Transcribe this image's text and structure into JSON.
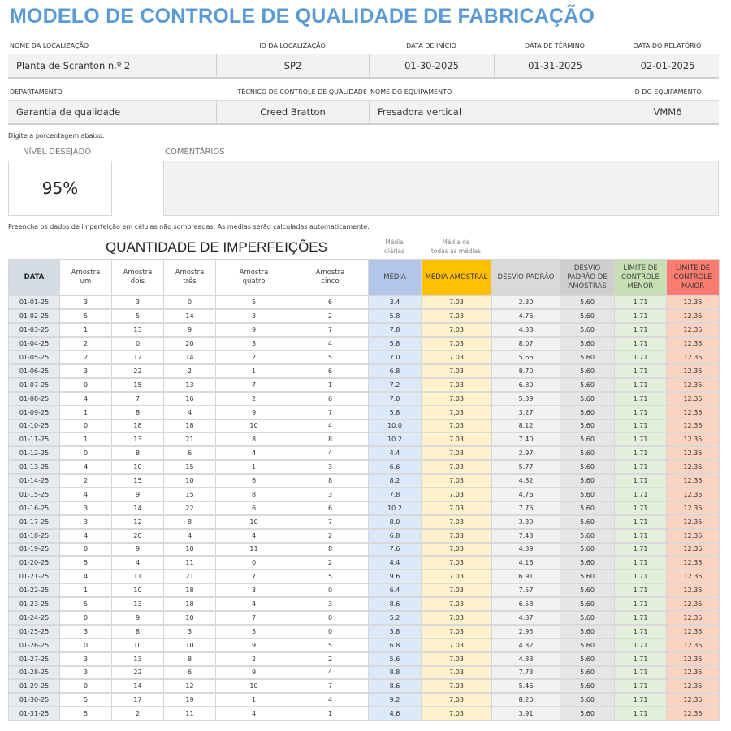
{
  "title": "MODELO DE CONTROLE DE QUALIDADE DE FABRICAÇÃO",
  "header_row1": {
    "location_name": {
      "label": "NOME DA LOCALIZAÇÃO",
      "value": "Planta de Scranton n.º 2"
    },
    "location_id": {
      "label": "ID DA LOCALIZAÇÃO",
      "value": "SP2"
    },
    "start_date": {
      "label": "DATA DE INÍCIO",
      "value": "01-30-2025"
    },
    "end_date": {
      "label": "DATA DE TÉRMINO",
      "value": "01-31-2025"
    },
    "report_date": {
      "label": "DATA DO RELATÓRIO",
      "value": "02-01-2025"
    }
  },
  "header_row2": {
    "department": {
      "label": "DEPARTAMENTO",
      "value": "Garantia de qualidade"
    },
    "technician": {
      "label": "TÉCNICO DE CONTROLE DE QUALIDADE",
      "value": "Creed Bratton"
    },
    "equipment_name": {
      "label": "NOME DO EQUIPAMENTO",
      "value": "Fresadora vertical"
    },
    "equipment_id": {
      "label": "ID DO EQUIPAMENTO",
      "value": "VMM6"
    }
  },
  "percent_note": "Digite a porcentagem abaixo.",
  "target_level": {
    "label": "NÍVEL DESEJADO",
    "value": "95%"
  },
  "comments": {
    "label": "COMENTÁRIOS",
    "value": ""
  },
  "fill_note": "Preencha os dados de imperfeição em células não sombreadas. As médias serão calculadas automaticamente.",
  "table": {
    "title": "QUANTIDADE DE IMPERFEIÇÕES",
    "hint_daily": [
      "Média",
      "diárias"
    ],
    "hint_all": [
      "Média de",
      "todas as médias"
    ],
    "headers": {
      "date": "DATA",
      "s1": [
        "Amostra",
        "um"
      ],
      "s2": [
        "Amostra",
        "dois"
      ],
      "s3": [
        "Amostra",
        "três"
      ],
      "s4": [
        "Amostra",
        "quatro"
      ],
      "s5": [
        "Amostra",
        "cinco"
      ],
      "mean": "MÉDIA",
      "sample_mean": "MÉDIA AMOSTRAL",
      "std_dev": "DESVIO PADRÃO",
      "sample_std": [
        "DESVIO",
        "PADRÃO DE",
        "AMOSTRAS"
      ],
      "lcl": [
        "LIMITE DE",
        "CONTROLE",
        "MENOR"
      ],
      "ucl": [
        "LIMITE DE",
        "CONTROLE",
        "MAIOR"
      ]
    },
    "colors": {
      "mean": "#b4c6e7",
      "sample_mean": "#ffc000",
      "std_dev": "#d9d9d9",
      "sample_std": "#d0cece",
      "lcl": "#c6e0b4",
      "ucl": "#ff7c70",
      "date": "#d6dce4"
    },
    "rows": [
      [
        "01-01-25",
        "3",
        "3",
        "0",
        "5",
        "6",
        "3.4",
        "7.03",
        "2.30",
        "5.60",
        "1.71",
        "12.35"
      ],
      [
        "01-02-25",
        "5",
        "5",
        "14",
        "3",
        "2",
        "5.8",
        "7.03",
        "4.76",
        "5.60",
        "1.71",
        "12.35"
      ],
      [
        "01-03-25",
        "1",
        "13",
        "9",
        "9",
        "7",
        "7.8",
        "7.03",
        "4.38",
        "5.60",
        "1.71",
        "12.35"
      ],
      [
        "01-04-25",
        "2",
        "0",
        "20",
        "3",
        "4",
        "5.8",
        "7.03",
        "8.07",
        "5.60",
        "1.71",
        "12.35"
      ],
      [
        "01-05-25",
        "2",
        "12",
        "14",
        "2",
        "5",
        "7.0",
        "7.03",
        "5.66",
        "5.60",
        "1.71",
        "12.35"
      ],
      [
        "01-06-25",
        "3",
        "22",
        "2",
        "1",
        "6",
        "6.8",
        "7.03",
        "8.70",
        "5.60",
        "1.71",
        "12.35"
      ],
      [
        "01-07-25",
        "0",
        "15",
        "13",
        "7",
        "1",
        "7.2",
        "7.03",
        "6.80",
        "5.60",
        "1.71",
        "12.35"
      ],
      [
        "01-08-25",
        "4",
        "7",
        "16",
        "2",
        "6",
        "7.0",
        "7.03",
        "5.39",
        "5.60",
        "1.71",
        "12.35"
      ],
      [
        "01-09-25",
        "1",
        "8",
        "4",
        "9",
        "7",
        "5.8",
        "7.03",
        "3.27",
        "5.60",
        "1.71",
        "12.35"
      ],
      [
        "01-10-25",
        "0",
        "18",
        "18",
        "10",
        "4",
        "10.0",
        "7.03",
        "8.12",
        "5.60",
        "1.71",
        "12.35"
      ],
      [
        "01-11-25",
        "1",
        "13",
        "21",
        "8",
        "8",
        "10.2",
        "7.03",
        "7.40",
        "5.60",
        "1.71",
        "12.35"
      ],
      [
        "01-12-25",
        "0",
        "8",
        "6",
        "4",
        "4",
        "4.4",
        "7.03",
        "2.97",
        "5.60",
        "1.71",
        "12.35"
      ],
      [
        "01-13-25",
        "4",
        "10",
        "15",
        "1",
        "3",
        "6.6",
        "7.03",
        "5.77",
        "5.60",
        "1.71",
        "12.35"
      ],
      [
        "01-14-25",
        "2",
        "15",
        "10",
        "6",
        "8",
        "8.2",
        "7.03",
        "4.82",
        "5.60",
        "1.71",
        "12.35"
      ],
      [
        "01-15-25",
        "4",
        "9",
        "15",
        "8",
        "3",
        "7.8",
        "7.03",
        "4.76",
        "5.60",
        "1.71",
        "12.35"
      ],
      [
        "01-16-25",
        "3",
        "14",
        "22",
        "6",
        "6",
        "10.2",
        "7.03",
        "7.76",
        "5.60",
        "1.71",
        "12.35"
      ],
      [
        "01-17-25",
        "3",
        "12",
        "8",
        "10",
        "7",
        "8.0",
        "7.03",
        "3.39",
        "5.60",
        "1.71",
        "12.35"
      ],
      [
        "01-18-25",
        "4",
        "20",
        "4",
        "4",
        "2",
        "6.8",
        "7.03",
        "7.43",
        "5.60",
        "1.71",
        "12.35"
      ],
      [
        "01-19-25",
        "0",
        "9",
        "10",
        "11",
        "8",
        "7.6",
        "7.03",
        "4.39",
        "5.60",
        "1.71",
        "12.35"
      ],
      [
        "01-20-25",
        "5",
        "4",
        "11",
        "0",
        "2",
        "4.4",
        "7.03",
        "4.16",
        "5.60",
        "1.71",
        "12.35"
      ],
      [
        "01-21-25",
        "4",
        "11",
        "21",
        "7",
        "5",
        "9.6",
        "7.03",
        "6.91",
        "5.60",
        "1.71",
        "12.35"
      ],
      [
        "01-22-25",
        "1",
        "10",
        "18",
        "3",
        "0",
        "6.4",
        "7.03",
        "7.57",
        "5.60",
        "1.71",
        "12.35"
      ],
      [
        "01-23-25",
        "5",
        "13",
        "18",
        "4",
        "3",
        "8.6",
        "7.03",
        "6.58",
        "5.60",
        "1.71",
        "12.35"
      ],
      [
        "01-24-25",
        "0",
        "9",
        "10",
        "7",
        "0",
        "5.2",
        "7.03",
        "4.87",
        "5.60",
        "1.71",
        "12.35"
      ],
      [
        "01-25-25",
        "3",
        "8",
        "3",
        "5",
        "0",
        "3.8",
        "7.03",
        "2.95",
        "5.60",
        "1.71",
        "12.35"
      ],
      [
        "01-26-25",
        "0",
        "10",
        "10",
        "9",
        "5",
        "6.8",
        "7.03",
        "4.32",
        "5.60",
        "1.71",
        "12.35"
      ],
      [
        "01-27-25",
        "3",
        "13",
        "8",
        "2",
        "2",
        "5.6",
        "7.03",
        "4.83",
        "5.60",
        "1.71",
        "12.35"
      ],
      [
        "01-28-25",
        "3",
        "22",
        "6",
        "9",
        "4",
        "8.8",
        "7.03",
        "7.73",
        "5.60",
        "1.71",
        "12.35"
      ],
      [
        "01-29-25",
        "0",
        "14",
        "12",
        "10",
        "7",
        "8.6",
        "7.03",
        "5.46",
        "5.60",
        "1.71",
        "12.35"
      ],
      [
        "01-30-25",
        "5",
        "17",
        "19",
        "1",
        "4",
        "9.2",
        "7.03",
        "8.20",
        "5.60",
        "1.71",
        "12.35"
      ],
      [
        "01-31-25",
        "5",
        "2",
        "11",
        "4",
        "1",
        "4.6",
        "7.03",
        "3.91",
        "5.60",
        "1.71",
        "12.35"
      ]
    ]
  }
}
